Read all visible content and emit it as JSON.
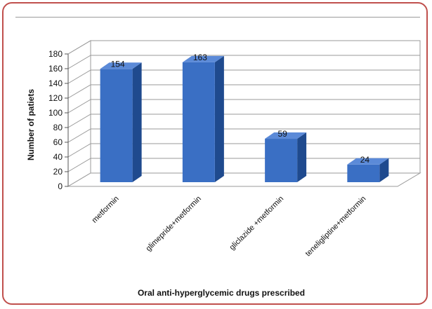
{
  "chart_data": {
    "type": "bar",
    "title": "",
    "xlabel": "Oral anti-hyperglycemic drugs prescribed",
    "ylabel": "Number of patiets",
    "ylim": [
      0,
      180
    ],
    "yticks": [
      0,
      20,
      40,
      60,
      80,
      100,
      120,
      140,
      160,
      180
    ],
    "grid": true,
    "three_d": true,
    "categories": [
      "metformin",
      "glimepride+metformin",
      "gliclazide +metformin",
      "teneligliptine+metformin"
    ],
    "values": [
      154,
      163,
      59,
      24
    ],
    "data_labels": [
      "154",
      "163",
      "59",
      "24"
    ],
    "colors": {
      "bar_front": "#3a6fc4",
      "bar_side": "#1f4a8e",
      "bar_top": "#5b8ad8",
      "frame_border": "#c0504d"
    }
  }
}
